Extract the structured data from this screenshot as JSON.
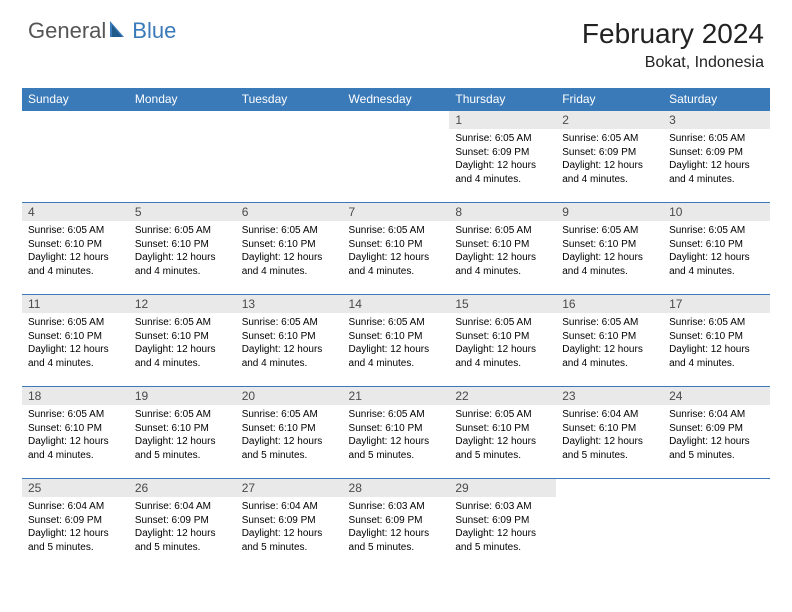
{
  "logo": {
    "general": "General",
    "blue": "Blue"
  },
  "colors": {
    "accent": "#3a7ab8",
    "header_bg": "#3a7ab8",
    "header_text": "#ffffff",
    "daynum_bg": "#e9e9e9",
    "daynum_text": "#4a4a4a",
    "body_text": "#000000",
    "page_bg": "#ffffff"
  },
  "title": "February 2024",
  "location": "Bokat, Indonesia",
  "day_headers": [
    "Sunday",
    "Monday",
    "Tuesday",
    "Wednesday",
    "Thursday",
    "Friday",
    "Saturday"
  ],
  "weeks": [
    [
      null,
      null,
      null,
      null,
      {
        "n": "1",
        "sunrise": "Sunrise: 6:05 AM",
        "sunset": "Sunset: 6:09 PM",
        "daylight": "Daylight: 12 hours and 4 minutes."
      },
      {
        "n": "2",
        "sunrise": "Sunrise: 6:05 AM",
        "sunset": "Sunset: 6:09 PM",
        "daylight": "Daylight: 12 hours and 4 minutes."
      },
      {
        "n": "3",
        "sunrise": "Sunrise: 6:05 AM",
        "sunset": "Sunset: 6:09 PM",
        "daylight": "Daylight: 12 hours and 4 minutes."
      }
    ],
    [
      {
        "n": "4",
        "sunrise": "Sunrise: 6:05 AM",
        "sunset": "Sunset: 6:10 PM",
        "daylight": "Daylight: 12 hours and 4 minutes."
      },
      {
        "n": "5",
        "sunrise": "Sunrise: 6:05 AM",
        "sunset": "Sunset: 6:10 PM",
        "daylight": "Daylight: 12 hours and 4 minutes."
      },
      {
        "n": "6",
        "sunrise": "Sunrise: 6:05 AM",
        "sunset": "Sunset: 6:10 PM",
        "daylight": "Daylight: 12 hours and 4 minutes."
      },
      {
        "n": "7",
        "sunrise": "Sunrise: 6:05 AM",
        "sunset": "Sunset: 6:10 PM",
        "daylight": "Daylight: 12 hours and 4 minutes."
      },
      {
        "n": "8",
        "sunrise": "Sunrise: 6:05 AM",
        "sunset": "Sunset: 6:10 PM",
        "daylight": "Daylight: 12 hours and 4 minutes."
      },
      {
        "n": "9",
        "sunrise": "Sunrise: 6:05 AM",
        "sunset": "Sunset: 6:10 PM",
        "daylight": "Daylight: 12 hours and 4 minutes."
      },
      {
        "n": "10",
        "sunrise": "Sunrise: 6:05 AM",
        "sunset": "Sunset: 6:10 PM",
        "daylight": "Daylight: 12 hours and 4 minutes."
      }
    ],
    [
      {
        "n": "11",
        "sunrise": "Sunrise: 6:05 AM",
        "sunset": "Sunset: 6:10 PM",
        "daylight": "Daylight: 12 hours and 4 minutes."
      },
      {
        "n": "12",
        "sunrise": "Sunrise: 6:05 AM",
        "sunset": "Sunset: 6:10 PM",
        "daylight": "Daylight: 12 hours and 4 minutes."
      },
      {
        "n": "13",
        "sunrise": "Sunrise: 6:05 AM",
        "sunset": "Sunset: 6:10 PM",
        "daylight": "Daylight: 12 hours and 4 minutes."
      },
      {
        "n": "14",
        "sunrise": "Sunrise: 6:05 AM",
        "sunset": "Sunset: 6:10 PM",
        "daylight": "Daylight: 12 hours and 4 minutes."
      },
      {
        "n": "15",
        "sunrise": "Sunrise: 6:05 AM",
        "sunset": "Sunset: 6:10 PM",
        "daylight": "Daylight: 12 hours and 4 minutes."
      },
      {
        "n": "16",
        "sunrise": "Sunrise: 6:05 AM",
        "sunset": "Sunset: 6:10 PM",
        "daylight": "Daylight: 12 hours and 4 minutes."
      },
      {
        "n": "17",
        "sunrise": "Sunrise: 6:05 AM",
        "sunset": "Sunset: 6:10 PM",
        "daylight": "Daylight: 12 hours and 4 minutes."
      }
    ],
    [
      {
        "n": "18",
        "sunrise": "Sunrise: 6:05 AM",
        "sunset": "Sunset: 6:10 PM",
        "daylight": "Daylight: 12 hours and 4 minutes."
      },
      {
        "n": "19",
        "sunrise": "Sunrise: 6:05 AM",
        "sunset": "Sunset: 6:10 PM",
        "daylight": "Daylight: 12 hours and 5 minutes."
      },
      {
        "n": "20",
        "sunrise": "Sunrise: 6:05 AM",
        "sunset": "Sunset: 6:10 PM",
        "daylight": "Daylight: 12 hours and 5 minutes."
      },
      {
        "n": "21",
        "sunrise": "Sunrise: 6:05 AM",
        "sunset": "Sunset: 6:10 PM",
        "daylight": "Daylight: 12 hours and 5 minutes."
      },
      {
        "n": "22",
        "sunrise": "Sunrise: 6:05 AM",
        "sunset": "Sunset: 6:10 PM",
        "daylight": "Daylight: 12 hours and 5 minutes."
      },
      {
        "n": "23",
        "sunrise": "Sunrise: 6:04 AM",
        "sunset": "Sunset: 6:10 PM",
        "daylight": "Daylight: 12 hours and 5 minutes."
      },
      {
        "n": "24",
        "sunrise": "Sunrise: 6:04 AM",
        "sunset": "Sunset: 6:09 PM",
        "daylight": "Daylight: 12 hours and 5 minutes."
      }
    ],
    [
      {
        "n": "25",
        "sunrise": "Sunrise: 6:04 AM",
        "sunset": "Sunset: 6:09 PM",
        "daylight": "Daylight: 12 hours and 5 minutes."
      },
      {
        "n": "26",
        "sunrise": "Sunrise: 6:04 AM",
        "sunset": "Sunset: 6:09 PM",
        "daylight": "Daylight: 12 hours and 5 minutes."
      },
      {
        "n": "27",
        "sunrise": "Sunrise: 6:04 AM",
        "sunset": "Sunset: 6:09 PM",
        "daylight": "Daylight: 12 hours and 5 minutes."
      },
      {
        "n": "28",
        "sunrise": "Sunrise: 6:03 AM",
        "sunset": "Sunset: 6:09 PM",
        "daylight": "Daylight: 12 hours and 5 minutes."
      },
      {
        "n": "29",
        "sunrise": "Sunrise: 6:03 AM",
        "sunset": "Sunset: 6:09 PM",
        "daylight": "Daylight: 12 hours and 5 minutes."
      },
      null,
      null
    ]
  ]
}
